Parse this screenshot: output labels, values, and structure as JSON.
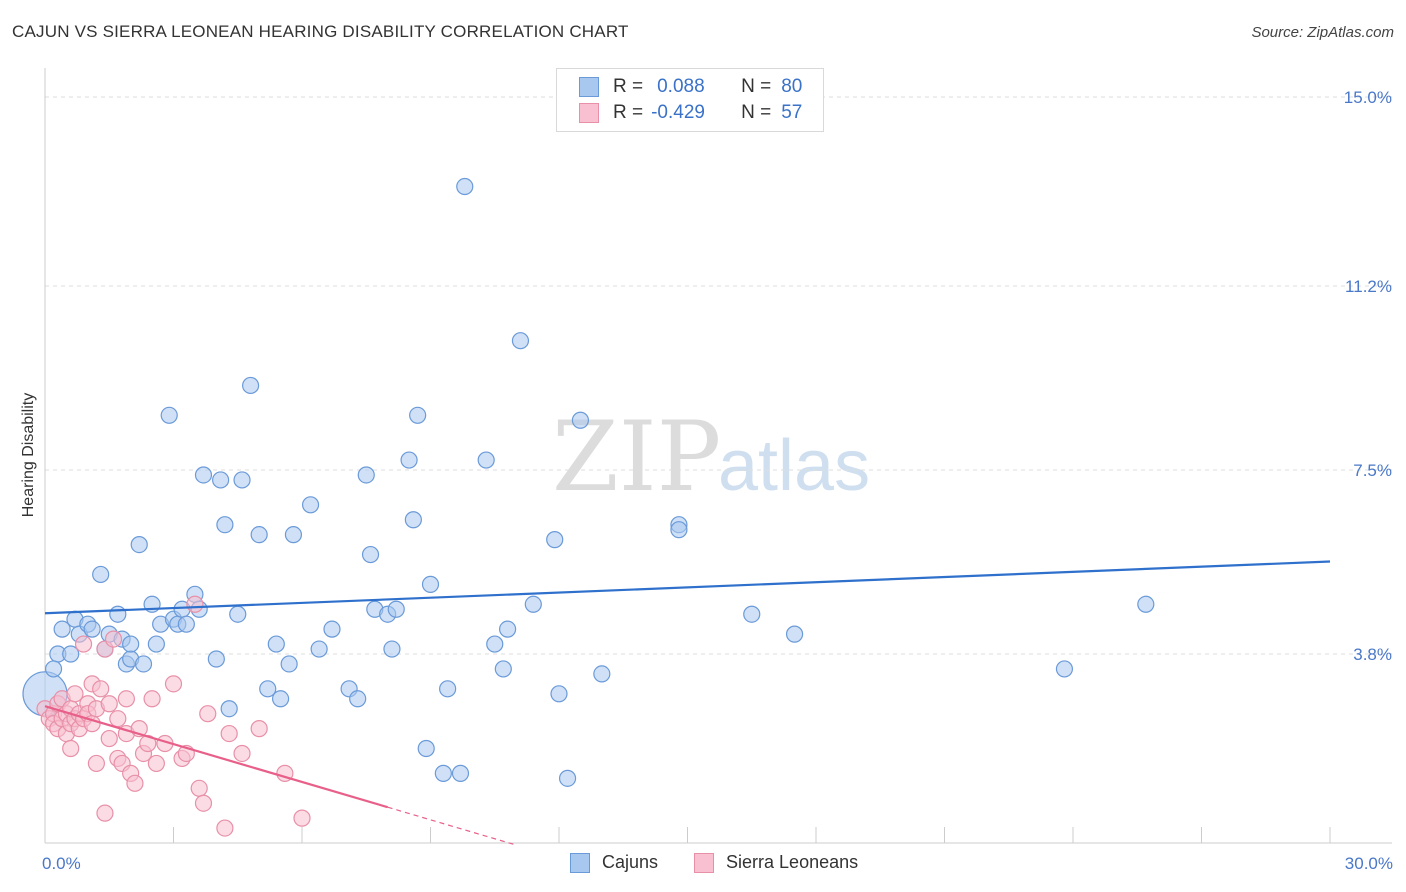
{
  "title": "CAJUN VS SIERRA LEONEAN HEARING DISABILITY CORRELATION CHART",
  "source": "Source: ZipAtlas.com",
  "watermark": {
    "zip": "ZIP",
    "atlas": "atlas"
  },
  "legend": {
    "rows": [
      {
        "r_label": "R =",
        "r_value": "0.088",
        "n_label": "N =",
        "n_value": "80",
        "color": "#a9c8f0",
        "border": "#6a9ad8"
      },
      {
        "r_label": "R =",
        "r_value": "-0.429",
        "n_label": "N =",
        "n_value": "57",
        "color": "#f8c0d0",
        "border": "#e890a8"
      }
    ]
  },
  "bottom_legend": [
    {
      "label": "Cajuns",
      "color": "#a9c8f0",
      "border": "#6a9ad8"
    },
    {
      "label": "Sierra Leoneans",
      "color": "#f8c0d0",
      "border": "#e890a8"
    }
  ],
  "chart_data": {
    "type": "scatter",
    "title": "CAJUN VS SIERRA LEONEAN HEARING DISABILITY CORRELATION CHART",
    "xlabel": "",
    "ylabel": "Hearing Disability",
    "xlim": [
      0,
      30
    ],
    "ylim": [
      0,
      15.0
    ],
    "x_tick_labels": [
      {
        "value": 0,
        "label": "0.0%"
      },
      {
        "value": 30,
        "label": "30.0%"
      }
    ],
    "y_tick_labels": [
      {
        "value": 3.8,
        "label": "3.8%"
      },
      {
        "value": 7.5,
        "label": "7.5%"
      },
      {
        "value": 11.2,
        "label": "11.2%"
      },
      {
        "value": 15.0,
        "label": "15.0%"
      }
    ],
    "series": [
      {
        "name": "Cajuns",
        "color": "#a9c8f0",
        "stroke": "#6a9ad8",
        "trend": {
          "x1": 0,
          "y1": 4.62,
          "x2": 30,
          "y2": 5.66,
          "color": "#2e70cc"
        },
        "points": [
          [
            0.0,
            3.0
          ],
          [
            0.3,
            3.8
          ],
          [
            0.4,
            4.3
          ],
          [
            0.6,
            3.8
          ],
          [
            0.7,
            4.5
          ],
          [
            0.8,
            4.2
          ],
          [
            1.0,
            4.4
          ],
          [
            1.1,
            4.3
          ],
          [
            1.3,
            5.4
          ],
          [
            1.4,
            3.9
          ],
          [
            1.5,
            4.2
          ],
          [
            1.7,
            4.6
          ],
          [
            1.8,
            4.1
          ],
          [
            1.9,
            3.6
          ],
          [
            2.0,
            3.7
          ],
          [
            2.2,
            6.0
          ],
          [
            2.3,
            3.6
          ],
          [
            2.5,
            4.8
          ],
          [
            2.6,
            4.0
          ],
          [
            2.7,
            4.4
          ],
          [
            2.9,
            8.6
          ],
          [
            3.0,
            4.5
          ],
          [
            3.1,
            4.4
          ],
          [
            3.2,
            4.7
          ],
          [
            3.3,
            4.4
          ],
          [
            3.5,
            5.0
          ],
          [
            3.6,
            4.7
          ],
          [
            3.7,
            7.4
          ],
          [
            4.0,
            3.7
          ],
          [
            4.1,
            7.3
          ],
          [
            4.2,
            6.4
          ],
          [
            4.3,
            2.7
          ],
          [
            4.5,
            4.6
          ],
          [
            4.6,
            7.3
          ],
          [
            4.8,
            9.2
          ],
          [
            5.0,
            6.2
          ],
          [
            5.2,
            3.1
          ],
          [
            5.4,
            4.0
          ],
          [
            5.5,
            2.9
          ],
          [
            5.7,
            3.6
          ],
          [
            5.8,
            6.2
          ],
          [
            6.2,
            6.8
          ],
          [
            6.4,
            3.9
          ],
          [
            6.7,
            4.3
          ],
          [
            7.1,
            3.1
          ],
          [
            7.3,
            2.9
          ],
          [
            7.5,
            7.4
          ],
          [
            7.6,
            5.8
          ],
          [
            7.7,
            4.7
          ],
          [
            8.0,
            4.6
          ],
          [
            8.1,
            3.9
          ],
          [
            8.2,
            4.7
          ],
          [
            8.5,
            7.7
          ],
          [
            8.6,
            6.5
          ],
          [
            8.7,
            8.6
          ],
          [
            8.9,
            1.9
          ],
          [
            9.0,
            5.2
          ],
          [
            9.3,
            1.4
          ],
          [
            9.4,
            3.1
          ],
          [
            9.7,
            1.4
          ],
          [
            9.8,
            13.2
          ],
          [
            10.3,
            7.7
          ],
          [
            10.5,
            4.0
          ],
          [
            10.7,
            3.5
          ],
          [
            10.8,
            4.3
          ],
          [
            11.1,
            10.1
          ],
          [
            11.4,
            4.8
          ],
          [
            11.9,
            6.1
          ],
          [
            12.0,
            3.0
          ],
          [
            12.2,
            1.3
          ],
          [
            12.5,
            8.5
          ],
          [
            13.0,
            3.4
          ],
          [
            14.8,
            6.4
          ],
          [
            14.8,
            6.3
          ],
          [
            16.5,
            4.6
          ],
          [
            17.5,
            4.2
          ],
          [
            23.8,
            3.5
          ],
          [
            25.7,
            4.8
          ],
          [
            0.2,
            3.5
          ],
          [
            2.0,
            4.0
          ]
        ]
      },
      {
        "name": "Sierra Leoneans",
        "color": "#f8c0d0",
        "stroke": "#e890a8",
        "trend": {
          "x1": 0,
          "y1": 2.75,
          "x2": 8.0,
          "y2": 0.72,
          "dash_to_x": 11.0,
          "color": "#e8608a"
        },
        "points": [
          [
            0.0,
            2.7
          ],
          [
            0.1,
            2.5
          ],
          [
            0.2,
            2.6
          ],
          [
            0.2,
            2.4
          ],
          [
            0.3,
            2.8
          ],
          [
            0.3,
            2.3
          ],
          [
            0.4,
            2.5
          ],
          [
            0.4,
            2.9
          ],
          [
            0.5,
            2.6
          ],
          [
            0.5,
            2.2
          ],
          [
            0.6,
            2.4
          ],
          [
            0.6,
            2.7
          ],
          [
            0.7,
            2.5
          ],
          [
            0.7,
            3.0
          ],
          [
            0.8,
            2.3
          ],
          [
            0.8,
            2.6
          ],
          [
            0.9,
            4.0
          ],
          [
            0.9,
            2.5
          ],
          [
            1.0,
            2.8
          ],
          [
            1.0,
            2.6
          ],
          [
            1.1,
            3.2
          ],
          [
            1.1,
            2.4
          ],
          [
            1.2,
            2.7
          ],
          [
            1.2,
            1.6
          ],
          [
            1.3,
            3.1
          ],
          [
            1.4,
            3.9
          ],
          [
            1.4,
            0.6
          ],
          [
            1.5,
            2.8
          ],
          [
            1.5,
            2.1
          ],
          [
            1.6,
            4.1
          ],
          [
            1.7,
            1.7
          ],
          [
            1.7,
            2.5
          ],
          [
            1.8,
            1.6
          ],
          [
            1.9,
            2.2
          ],
          [
            2.0,
            1.4
          ],
          [
            2.1,
            1.2
          ],
          [
            2.2,
            2.3
          ],
          [
            2.3,
            1.8
          ],
          [
            2.4,
            2.0
          ],
          [
            2.5,
            2.9
          ],
          [
            2.6,
            1.6
          ],
          [
            2.8,
            2.0
          ],
          [
            3.0,
            3.2
          ],
          [
            3.2,
            1.7
          ],
          [
            3.3,
            1.8
          ],
          [
            3.5,
            4.8
          ],
          [
            3.6,
            1.1
          ],
          [
            3.7,
            0.8
          ],
          [
            3.8,
            2.6
          ],
          [
            4.2,
            0.3
          ],
          [
            4.3,
            2.2
          ],
          [
            4.6,
            1.8
          ],
          [
            5.0,
            2.3
          ],
          [
            5.6,
            1.4
          ],
          [
            6.0,
            0.5
          ],
          [
            1.9,
            2.9
          ],
          [
            0.6,
            1.9
          ]
        ]
      }
    ]
  }
}
